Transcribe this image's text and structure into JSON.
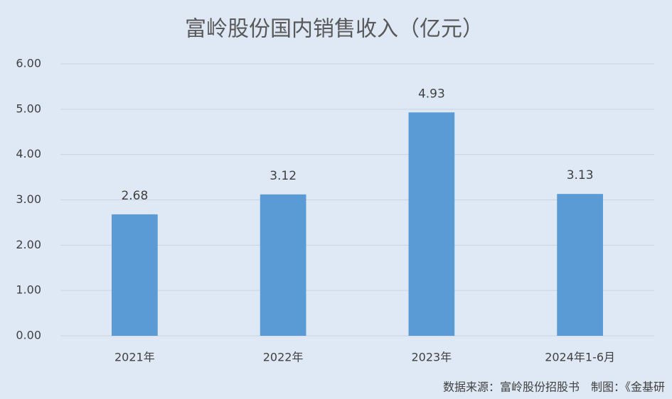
{
  "chart_data": {
    "type": "bar",
    "title": "富岭股份国内销售收入（亿元）",
    "categories": [
      "2021年",
      "2022年",
      "2023年",
      "2024年1-6月"
    ],
    "values": [
      2.68,
      3.12,
      4.93,
      3.13
    ],
    "color": "#5b9bd5",
    "ylim": [
      0,
      6
    ],
    "yticks": [
      {
        "value": 0,
        "label": "0.00"
      },
      {
        "value": 1,
        "label": "1.00"
      },
      {
        "value": 2,
        "label": "2.00"
      },
      {
        "value": 3,
        "label": "3.00"
      },
      {
        "value": 4,
        "label": "4.00"
      },
      {
        "value": 5,
        "label": "5.00"
      },
      {
        "value": 6,
        "label": "6.00"
      }
    ],
    "grid": true,
    "source": "数据来源：富岭股份招股书　制图：《金基研"
  }
}
